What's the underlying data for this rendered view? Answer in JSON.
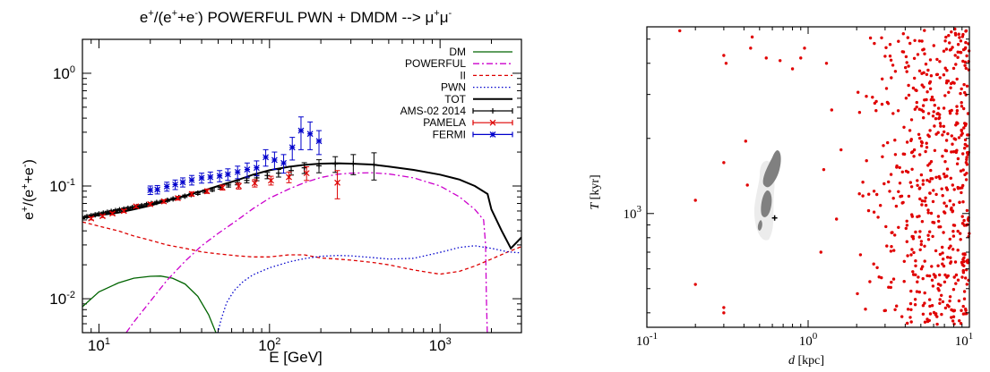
{
  "chart_data": [
    {
      "type": "line",
      "title": {
        "prefix": "e",
        "sup1": "+",
        "mid": "/(e",
        "sup2": "+",
        "mid2": "+e",
        "sup3": "-",
        "suffix": ") POWERFUL PWN + DMDM --> μ",
        "sup4": "+",
        "tail": "μ",
        "sup5": "-"
      },
      "xlabel": "E [GeV]",
      "ylabel": {
        "a": "e",
        "a_sup": "+",
        "b": "/(e",
        "b_sup": "+",
        "c": "+e",
        "c_sup": "-",
        "d": ")"
      },
      "xscale": "log",
      "yscale": "log",
      "xlim": [
        8,
        3000
      ],
      "ylim": [
        0.005,
        2
      ],
      "xticks": [
        {
          "v": 10,
          "base": "10",
          "exp": "1"
        },
        {
          "v": 100,
          "base": "10",
          "exp": "2"
        },
        {
          "v": 1000,
          "base": "10",
          "exp": "3"
        }
      ],
      "yticks": [
        {
          "v": 0.01,
          "base": "10",
          "exp": "-2"
        },
        {
          "v": 0.1,
          "base": "10",
          "exp": "-1"
        },
        {
          "v": 1,
          "base": "10",
          "exp": "0"
        }
      ],
      "legend_position": "top-right",
      "series": [
        {
          "name": "DM",
          "color": "#006400",
          "style": "solid",
          "x": [
            8,
            10,
            13,
            16,
            20,
            23,
            27,
            32,
            38,
            44,
            48,
            52
          ],
          "y": [
            0.0085,
            0.0115,
            0.0138,
            0.0152,
            0.0158,
            0.0159,
            0.0152,
            0.0135,
            0.0105,
            0.0072,
            0.0052,
            0.004
          ]
        },
        {
          "name": "POWERFUL",
          "color": "#cc00cc",
          "style": "dashdot",
          "x": [
            13,
            16,
            20,
            25,
            32,
            40,
            50,
            65,
            80,
            100,
            130,
            160,
            200,
            250,
            300,
            400,
            500,
            700,
            1000,
            1300,
            1600,
            1800,
            1850,
            1870,
            1900
          ],
          "y": [
            0.004,
            0.0062,
            0.0095,
            0.0145,
            0.0215,
            0.0295,
            0.038,
            0.05,
            0.063,
            0.078,
            0.094,
            0.107,
            0.119,
            0.127,
            0.13,
            0.131,
            0.128,
            0.118,
            0.1,
            0.08,
            0.062,
            0.05,
            0.03,
            0.01,
            0.004
          ]
        },
        {
          "name": "II",
          "color": "#dd0000",
          "style": "dashed",
          "x": [
            8,
            10,
            13,
            16,
            20,
            25,
            32,
            40,
            50,
            65,
            80,
            100,
            130,
            160,
            200,
            250,
            300,
            400,
            500,
            700,
            1000,
            1300,
            1600,
            2000,
            2500,
            3000
          ],
          "y": [
            0.048,
            0.044,
            0.04,
            0.036,
            0.033,
            0.03,
            0.028,
            0.026,
            0.025,
            0.024,
            0.0235,
            0.0235,
            0.0245,
            0.0245,
            0.023,
            0.0225,
            0.022,
            0.021,
            0.02,
            0.018,
            0.0165,
            0.0175,
            0.0195,
            0.0225,
            0.026,
            0.029
          ]
        },
        {
          "name": "PWN",
          "color": "#0000cc",
          "style": "dotted",
          "x": [
            48,
            52,
            56,
            62,
            70,
            80,
            100,
            130,
            160,
            200,
            250,
            300,
            400,
            500,
            700,
            1000,
            1300,
            1600,
            2000,
            2500,
            3000
          ],
          "y": [
            0.004,
            0.0065,
            0.0092,
            0.0118,
            0.0142,
            0.0163,
            0.0188,
            0.0212,
            0.0227,
            0.0238,
            0.0242,
            0.024,
            0.0232,
            0.0225,
            0.0228,
            0.0258,
            0.0285,
            0.0295,
            0.028,
            0.026,
            0.0255
          ]
        },
        {
          "name": "TOT",
          "color": "#000000",
          "style": "solid",
          "x": [
            8,
            10,
            13,
            16,
            20,
            25,
            32,
            40,
            50,
            65,
            80,
            100,
            130,
            160,
            200,
            250,
            300,
            400,
            500,
            700,
            1000,
            1300,
            1600,
            1900,
            2000,
            2300,
            2600,
            3000
          ],
          "y": [
            0.052,
            0.055,
            0.058,
            0.062,
            0.067,
            0.074,
            0.082,
            0.09,
            0.1,
            0.113,
            0.126,
            0.138,
            0.148,
            0.154,
            0.158,
            0.159,
            0.158,
            0.155,
            0.149,
            0.139,
            0.126,
            0.114,
            0.1,
            0.085,
            0.062,
            0.04,
            0.028,
            0.035
          ]
        },
        {
          "name": "AMS-02 2014",
          "color": "#000000",
          "style": "points-plus",
          "x": [
            8,
            8.5,
            9,
            9.5,
            10,
            10.6,
            11.2,
            11.8,
            12.5,
            13.2,
            14,
            14.8,
            15.7,
            16.7,
            17.8,
            19,
            20.3,
            21.8,
            23.4,
            25.2,
            27.2,
            29.4,
            31.9,
            34.7,
            38,
            41.8,
            46.2,
            51.4,
            57.5,
            64.8,
            73.6,
            84.2,
            97.1,
            113,
            134,
            160,
            195,
            243,
            310,
            410
          ],
          "y": [
            0.0525,
            0.0535,
            0.0545,
            0.0555,
            0.0565,
            0.0575,
            0.0585,
            0.0595,
            0.0605,
            0.0615,
            0.0625,
            0.0635,
            0.0645,
            0.0658,
            0.067,
            0.0685,
            0.07,
            0.0715,
            0.073,
            0.0748,
            0.0768,
            0.079,
            0.0812,
            0.0838,
            0.0865,
            0.0895,
            0.093,
            0.0972,
            0.102,
            0.107,
            0.112,
            0.118,
            0.124,
            0.13,
            0.137,
            0.145,
            0.151,
            0.157,
            0.158,
            0.155
          ],
          "err": [
            0.0012,
            0.0012,
            0.0012,
            0.0012,
            0.0012,
            0.0012,
            0.0012,
            0.0012,
            0.0012,
            0.0012,
            0.0013,
            0.0013,
            0.0013,
            0.0013,
            0.0014,
            0.0014,
            0.0015,
            0.0015,
            0.0016,
            0.0017,
            0.0018,
            0.0019,
            0.002,
            0.0022,
            0.0024,
            0.0027,
            0.003,
            0.0034,
            0.004,
            0.0046,
            0.0055,
            0.0066,
            0.008,
            0.01,
            0.012,
            0.016,
            0.02,
            0.025,
            0.032,
            0.042
          ]
        },
        {
          "name": "PAMELA",
          "color": "#dd0000",
          "style": "points-x",
          "x": [
            9,
            10.5,
            12,
            14,
            16.5,
            20,
            24,
            29,
            35,
            43,
            53,
            66,
            82,
            102,
            130,
            165,
            250
          ],
          "y": [
            0.0515,
            0.054,
            0.057,
            0.06,
            0.066,
            0.069,
            0.073,
            0.078,
            0.085,
            0.09,
            0.097,
            0.1,
            0.106,
            0.112,
            0.12,
            0.13,
            0.107
          ],
          "err": [
            0.0015,
            0.0015,
            0.0016,
            0.0018,
            0.002,
            0.0022,
            0.0025,
            0.003,
            0.0035,
            0.004,
            0.005,
            0.006,
            0.008,
            0.01,
            0.013,
            0.018,
            0.03
          ]
        },
        {
          "name": "FERMI",
          "color": "#0000cc",
          "style": "points-star",
          "x": [
            20,
            22,
            25,
            28,
            31,
            35,
            40,
            45,
            51,
            57,
            65,
            74,
            84,
            95,
            107,
            121,
            136,
            153,
            173,
            195
          ],
          "y": [
            0.092,
            0.093,
            0.099,
            0.103,
            0.108,
            0.113,
            0.118,
            0.12,
            0.123,
            0.127,
            0.133,
            0.14,
            0.145,
            0.18,
            0.17,
            0.16,
            0.22,
            0.31,
            0.29,
            0.25
          ],
          "err": [
            0.008,
            0.008,
            0.009,
            0.01,
            0.01,
            0.011,
            0.012,
            0.013,
            0.014,
            0.015,
            0.017,
            0.02,
            0.022,
            0.03,
            0.03,
            0.03,
            0.05,
            0.1,
            0.08,
            0.06
          ]
        }
      ]
    },
    {
      "type": "scatter",
      "title": "",
      "xlabel": {
        "var": "d",
        "unit": " [kpc]"
      },
      "ylabel": {
        "var": "T",
        "unit": " [kyr]"
      },
      "xscale": "log",
      "yscale": "log",
      "xlim": [
        0.1,
        10
      ],
      "ylim": [
        350,
        5600
      ],
      "xticks": [
        {
          "v": 0.1,
          "base": "10",
          "exp": "-1"
        },
        {
          "v": 1,
          "base": "10",
          "exp": "0"
        },
        {
          "v": 10,
          "base": "10",
          "exp": "1"
        }
      ],
      "yticks": [
        {
          "v": 1000,
          "base": "10",
          "exp": "3"
        }
      ],
      "point_color": "#e00000",
      "best_fit": {
        "x": 0.62,
        "y": 960
      },
      "contour_colors": [
        "#ececec",
        "#808080"
      ],
      "scatter_sparse": {
        "x": [
          0.16,
          0.3,
          0.31,
          0.3,
          0.2,
          0.2,
          0.3,
          0.3,
          0.41,
          0.42,
          0.44,
          0.45,
          0.55,
          0.67,
          0.8,
          0.9,
          0.95,
          1.2,
          1.25,
          1.3,
          1.4,
          1.5,
          1.6
        ],
        "y": [
          5400,
          4300,
          4000,
          1600,
          1130,
          520,
          420,
          400,
          1950,
          1300,
          4600,
          5100,
          4200,
          4100,
          3800,
          4200,
          4600,
          700,
          1500,
          4000,
          2600,
          950,
          1800
        ]
      },
      "scatter_dense_region": {
        "xlim": [
          1.8,
          10
        ],
        "ylim": [
          360,
          5500
        ],
        "count": 560
      }
    }
  ]
}
